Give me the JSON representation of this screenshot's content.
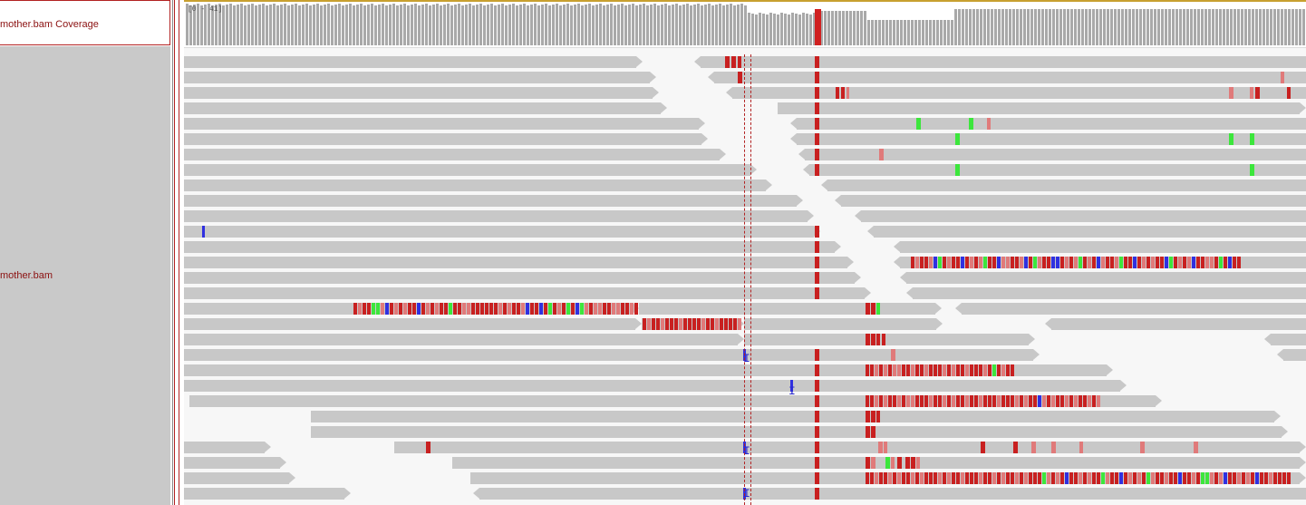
{
  "tracks": {
    "coverage_label": "mother.bam Coverage",
    "reads_label": "mother.bam"
  },
  "coverage": {
    "range_label": "[0 - 41]"
  },
  "colors": {
    "read": "#c8c8c8",
    "red": "#c82020",
    "light_red": "#e07a7a",
    "green": "#3ce63c",
    "blue": "#3030e0",
    "coverage_bar": "#a9a9a9",
    "coverage_highlight": "#d02020"
  },
  "icons": {
    "insertion": "insertion-marker-icon"
  }
}
